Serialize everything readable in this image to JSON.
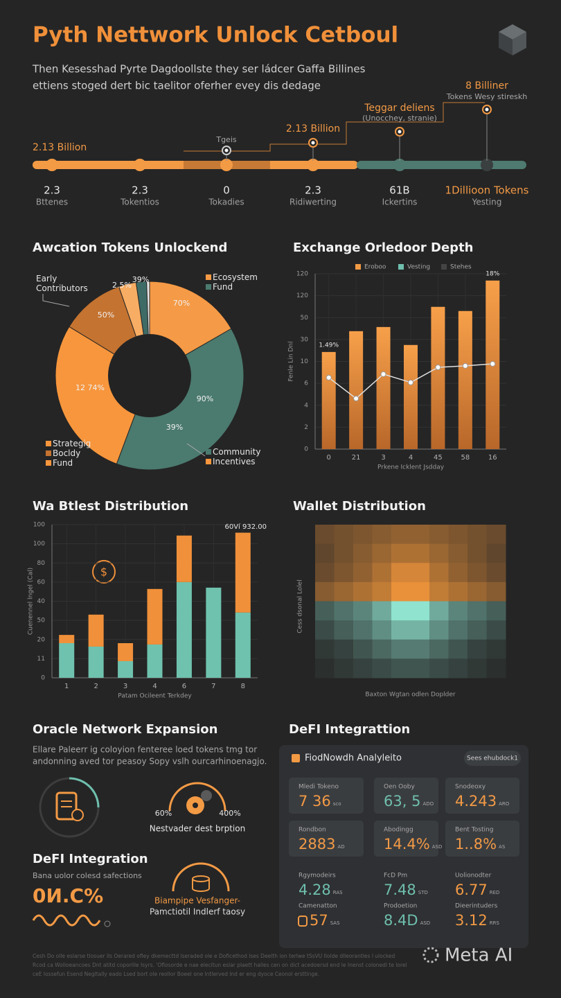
{
  "header": {
    "title": "Pyth Nettwork Unlock Cetboul",
    "subtitle": [
      "Then Kesesshad Pyrte Dagdoollste they ser ládcer Gaffa Billines",
      "ettiens stoged dert bic taelitor oferher evey dis dedage"
    ]
  },
  "timeline": {
    "milestones": [
      {
        "value": "2.3",
        "label": "Bttenes",
        "callout": [
          "2.13 Billion"
        ]
      },
      {
        "value": "2.3",
        "label": "Tokentios"
      },
      {
        "value": "0",
        "label": "Tokadies",
        "callout": [
          "Tgeis"
        ]
      },
      {
        "value": "2.3",
        "label": "Ridiwerting",
        "callout": [
          "2.13 Billion"
        ]
      },
      {
        "value": "61B",
        "label": "Ickertins",
        "callout": [
          "Teggar deliens",
          "(Unocchey, stranie)"
        ]
      },
      {
        "value": "1Dillioon Tokens",
        "label": "Yesting",
        "callout": [
          "8 Billiner",
          "Tokens Wesy stireskh"
        ]
      }
    ]
  },
  "chart_data": [
    {
      "type": "pie",
      "donut": true,
      "title": "Awcation Tokens Unlockend",
      "categories": [
        "Ecosystem Fund",
        "Community Incentives",
        "Strategig Bocldy Fund",
        "Early Contributors",
        null,
        null,
        null
      ],
      "values": [
        16.7,
        39,
        28,
        11,
        3,
        1.8,
        0.5
      ],
      "colors": [
        "#f59a46",
        "#4b7a6e",
        "#f7963d",
        "#c47330",
        "#f7ad63",
        "#3e6b66",
        "#e8e8e8"
      ],
      "annotations": [
        "70%",
        "90%",
        "39%",
        "12 74%",
        "50%",
        "2.5%",
        "39%"
      ]
    },
    {
      "type": "bar",
      "title": "Exchange Orledoor Depth",
      "categories": [
        "0",
        "21",
        "3",
        "4",
        "45",
        "58",
        "16"
      ],
      "series": [
        {
          "type": "bar",
          "color": "#f39a45",
          "values": [
            4.43,
            5.38,
            5.57,
            4.75,
            6.49,
            6.3,
            7.69
          ]
        },
        {
          "type": "line",
          "color": "#e0e0e0",
          "values": [
            3.26,
            2.31,
            3.42,
            3.04,
            3.73,
            3.8,
            3.89
          ]
        }
      ],
      "legend": [
        {
          "label": "Eroboo",
          "color": "#f39a45"
        },
        {
          "label": "Vesting",
          "color": "#6fbfae"
        },
        {
          "label": "Stehes",
          "color": "#444444"
        }
      ],
      "annotations": [
        "1.49%",
        "18%"
      ],
      "xlabel": "Prkene Icklent Jsdday",
      "ylabel": "Fenle Lin Dnl",
      "ylim": [
        0,
        8
      ],
      "yticks": [
        0,
        {
          "value": 1,
          "label": "2"
        },
        {
          "value": 2,
          "label": "4"
        },
        {
          "value": 3,
          "label": "6"
        },
        {
          "value": 4,
          "label": "10"
        },
        {
          "value": 5,
          "label": "30"
        },
        {
          "value": 6,
          "label": "50"
        },
        {
          "value": 7,
          "label": "120"
        },
        {
          "value": 8,
          "label": "120"
        }
      ],
      "grid": true
    },
    {
      "type": "stacked_bar",
      "title": "Wa Btlest Distribution",
      "categories": [
        "1",
        "2",
        "3",
        "4",
        "6",
        "7",
        "8"
      ],
      "series": [
        {
          "color": "#6fc2ae",
          "values": [
            1.81,
            1.63,
            0.87,
            1.74,
            5.0,
            4.71,
            3.41
          ]
        },
        {
          "color": "#f0903a",
          "values": [
            0.43,
            1.67,
            0.94,
            2.9,
            2.43,
            0,
            4.17
          ]
        }
      ],
      "annotations": [
        "60Ví 932.00"
      ],
      "xlabel": "Patam Ocileent Terkdey",
      "ylabel": "Cuenennel lngel (Cal)",
      "ylim": [
        0,
        8
      ],
      "yticks": [
        0,
        {
          "value": 1,
          "label": "11"
        },
        {
          "value": 2,
          "label": "20"
        },
        {
          "value": 3,
          "label": "50"
        },
        {
          "value": 4,
          "label": "40"
        },
        {
          "value": 5,
          "label": "60"
        },
        {
          "value": 6,
          "label": "80"
        },
        {
          "value": 7,
          "label": "100"
        },
        {
          "value": 8,
          "label": "100"
        }
      ],
      "grid": true
    },
    {
      "type": "heatmap",
      "title": "Wallet Distribution",
      "xlabel": "Baxton Wgtan odlen Doplder",
      "ylabel": "Cess dsonal Lolel",
      "zlim": [
        0,
        1
      ],
      "low_color": "#262626",
      "row_colors": [
        "#e8913a",
        "#e8913a",
        "#e8913a",
        "#e8913a",
        "#8fe3cf",
        "#8fe3cf",
        "#8fe3cf",
        "#8fe3cf"
      ],
      "z": [
        [
          0.35,
          0.4,
          0.45,
          0.5,
          0.55,
          0.55,
          0.5,
          0.45,
          0.4,
          0.35
        ],
        [
          0.3,
          0.4,
          0.5,
          0.6,
          0.7,
          0.7,
          0.6,
          0.5,
          0.4,
          0.3
        ],
        [
          0.35,
          0.45,
          0.55,
          0.7,
          0.9,
          0.9,
          0.7,
          0.55,
          0.45,
          0.35
        ],
        [
          0.5,
          0.6,
          0.7,
          0.8,
          1,
          1,
          0.8,
          0.7,
          0.6,
          0.5
        ],
        [
          0.3,
          0.4,
          0.5,
          0.7,
          1,
          1,
          0.7,
          0.5,
          0.4,
          0.3
        ],
        [
          0.2,
          0.3,
          0.4,
          0.55,
          0.75,
          0.75,
          0.55,
          0.4,
          0.3,
          0.2
        ],
        [
          0.1,
          0.15,
          0.25,
          0.35,
          0.45,
          0.45,
          0.35,
          0.25,
          0.15,
          0.1
        ],
        [
          0.05,
          0.1,
          0.15,
          0.2,
          0.25,
          0.25,
          0.2,
          0.15,
          0.1,
          0.05
        ]
      ]
    }
  ],
  "oracle": {
    "title": "Oracle Network Expansion",
    "text": [
      "Ellare Paleerr ig coloyion fenteree loed tokens tmg tor",
      "andonning aved tor peasoy Sopy vslh ourcarhinoenagjo."
    ],
    "gear_left": "60%",
    "gear_right": "400%",
    "gear_caption": "Nestvader dest brption",
    "subtitle": "DeFI Integration",
    "subtext": "Bana uolor colesd safections",
    "big": "0И.C%",
    "coin_caption": [
      "Biampipe Vesfanger-",
      "Pamctiotil Indlerf taosy"
    ]
  },
  "defi": {
    "title": "DeFI Integrattion",
    "panel_title": "FiodNowdh Analyleito",
    "button": "Sees ehubdock1",
    "cards": [
      [
        {
          "label": "Mledi Tokeno",
          "value": "7 36",
          "unit": "sco",
          "color": "#f39a45"
        },
        {
          "label": "Oen Ooby",
          "value": "63, 5",
          "unit": "ADO",
          "color": "#6fbfae"
        },
        {
          "label": "Snodeoxy",
          "value": "4.243",
          "unit": "ARO",
          "color": "#f39a45"
        }
      ],
      [
        {
          "label": "Rondbon",
          "value": "2883",
          "unit": "AD",
          "color": "#f39a45"
        },
        {
          "label": "Abodingg",
          "value": "14.4%",
          "unit": "ASD",
          "color": "#f39a45"
        },
        {
          "label": "Bent Tosting",
          "value": "1..8%",
          "unit": "AS",
          "color": "#f39a45"
        }
      ],
      [
        {
          "label": "Rgymodeirs",
          "value": "4.28",
          "unit": "RAS",
          "color": "#6fbfae"
        },
        {
          "label": "FcD Pm",
          "value": "7.48",
          "unit": "STD",
          "color": "#6fbfae"
        },
        {
          "label": "Uolionodter",
          "value": "6.77",
          "unit": "RED",
          "color": "#f39a45"
        }
      ],
      [
        {
          "label": "Camenatton",
          "value": "57",
          "unit": "SAS",
          "color": "#f39a45"
        },
        {
          "label": "Prodoetion",
          "value": "8.4D",
          "unit": "ASD",
          "color": "#6fbfae"
        },
        {
          "label": "Dieerintuders",
          "value": "3.12",
          "unit": "RRS",
          "color": "#f39a45"
        }
      ]
    ]
  },
  "footer": [
    "Cesh Do olle eslarse tlosuer ils Oerared ofley dkemecttd lseraded ole e Doficethod lses Deelth ion terlwe tSsVU Ilolde dlleorantles l ulocked",
    "Rcod ca Wolloeancoes Dnt atitd coporille Isyrs. 'Oflosorde e nae elecitun eslar plaett halles cen on dict acedoersd end le Inenst colonedl te lorel",
    "ceE lossefun Esend Negltally eado Lsed bort ole reollor Boeel one lntlerved lnd er eng dyoce Ceonol ersttinge."
  ],
  "watermark": "Meta AI"
}
